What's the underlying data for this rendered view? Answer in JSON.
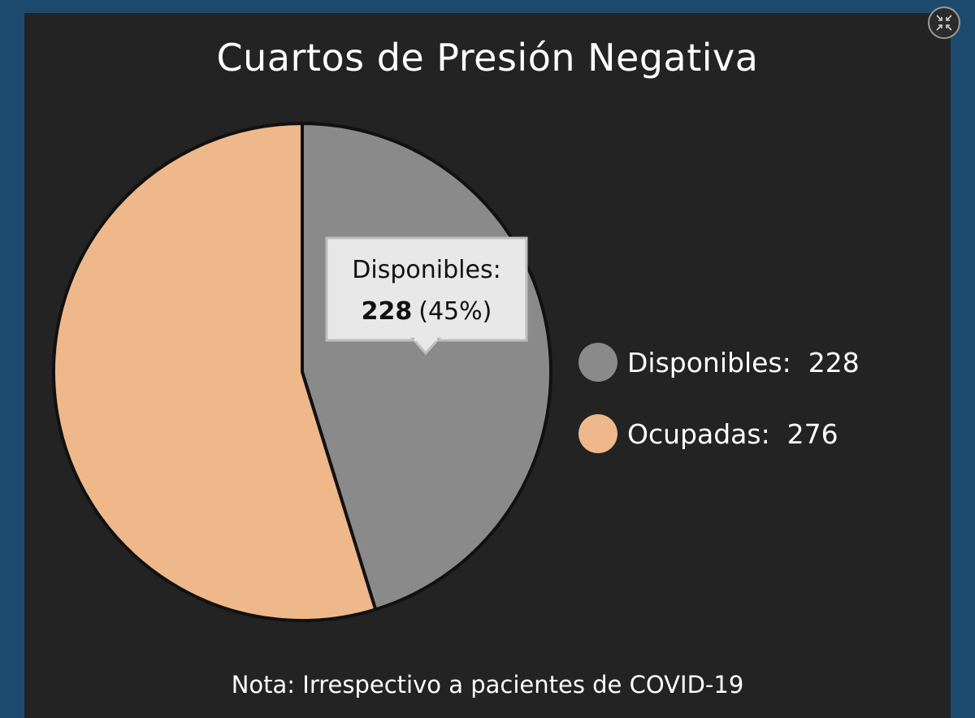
{
  "chart_data": {
    "type": "pie",
    "title": "Cuartos de Presión Negativa",
    "categories": [
      "Disponibles",
      "Ocupadas"
    ],
    "values": [
      228,
      276
    ],
    "colors": [
      "#8a8a8a",
      "#efb88a"
    ],
    "legend_position": "right",
    "legend_entries": [
      "Disponibles:  228",
      "Ocupadas:  276"
    ],
    "tooltip": {
      "label": "Disponibles:",
      "value": "228",
      "percent": "(45%)"
    }
  },
  "note": "Nota: Irrespectivo a pacientes de COVID-19",
  "controls": {
    "collapse_icon": "collapse-arrows-icon"
  }
}
